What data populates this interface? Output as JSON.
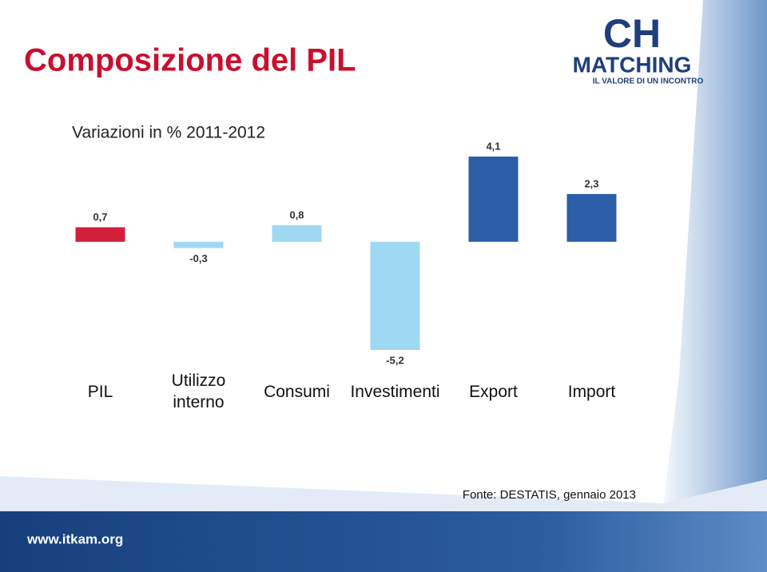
{
  "title": "Composizione del PIL",
  "logo": {
    "mark": "CH",
    "name": "MATCHING",
    "tagline": "IL VALORE DI UN INCONTRO"
  },
  "source": "Fonte: DESTATIS, gennaio 2013",
  "footer": "www.itkam.org",
  "chart_data": {
    "type": "bar",
    "subtitle": "Variazioni in % 2011-2012",
    "categories": [
      "PIL",
      "Utilizzo interno",
      "Consumi",
      "Investimenti",
      "Export",
      "Import"
    ],
    "values": [
      0.7,
      -0.3,
      0.8,
      -5.2,
      4.1,
      2.3
    ],
    "value_labels": [
      "0,7",
      "-0,3",
      "0,8",
      "-5,2",
      "4,1",
      "2,3"
    ],
    "colors": [
      "#d21f3c",
      "#9fd8f2",
      "#9fd8f2",
      "#9fd8f2",
      "#2c5ea8",
      "#2c5ea8"
    ]
  }
}
